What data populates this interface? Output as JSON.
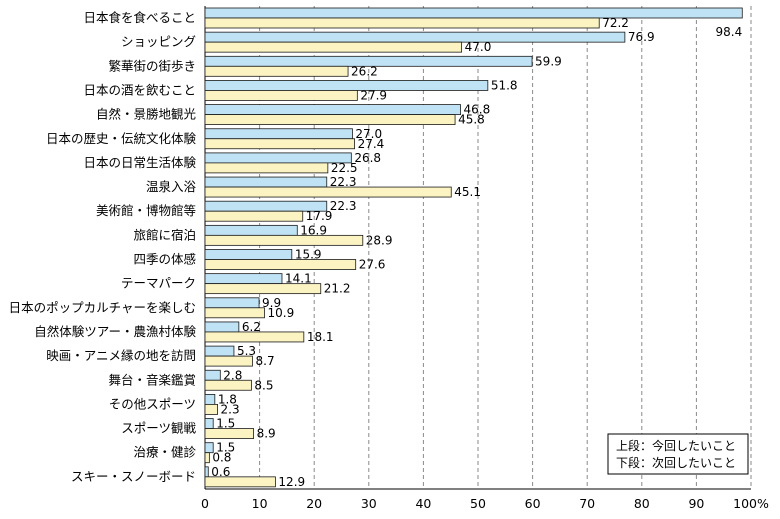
{
  "chart_data": {
    "type": "bar",
    "orientation": "horizontal",
    "categories": [
      "日本食を食べること",
      "ショッピング",
      "繁華街の街歩き",
      "日本の酒を飲むこと",
      "自然・景勝地観光",
      "日本の歴史・伝統文化体験",
      "日本の日常生活体験",
      "温泉入浴",
      "美術館・博物館等",
      "旅館に宿泊",
      "四季の体感",
      "テーマパーク",
      "日本のポップカルチャーを楽しむ",
      "自然体験ツアー・農漁村体験",
      "映画・アニメ縁の地を訪問",
      "舞台・音楽鑑賞",
      "その他スポーツ",
      "スポーツ観戦",
      "治療・健診",
      "スキー・スノーボード"
    ],
    "series": [
      {
        "name": "上段：今回したいこと",
        "color": "#bfe3f5",
        "values": [
          98.4,
          76.9,
          59.9,
          51.8,
          46.8,
          27.0,
          26.8,
          22.3,
          22.3,
          16.9,
          15.9,
          14.1,
          9.9,
          6.2,
          5.3,
          2.8,
          1.8,
          1.5,
          1.5,
          0.6
        ]
      },
      {
        "name": "下段：次回したいこと",
        "color": "#fbf3c2",
        "values": [
          72.2,
          47.0,
          26.2,
          27.9,
          45.8,
          27.4,
          22.5,
          45.1,
          17.9,
          28.9,
          27.6,
          21.2,
          10.9,
          18.1,
          8.7,
          8.5,
          2.3,
          8.9,
          0.8,
          12.9
        ]
      }
    ],
    "value_labels": [
      [
        "98.4",
        "72.2"
      ],
      [
        "76.9",
        "47.0"
      ],
      [
        "59.9",
        "26.2"
      ],
      [
        "51.8",
        "27.9"
      ],
      [
        "46.8",
        "45.8"
      ],
      [
        "27.0",
        "27.4"
      ],
      [
        "26.8",
        "22.5"
      ],
      [
        "22.3",
        "45.1"
      ],
      [
        "22.3",
        "17.9"
      ],
      [
        "16.9",
        "28.9"
      ],
      [
        "15.9",
        "27.6"
      ],
      [
        "14.1",
        "21.2"
      ],
      [
        "9.9",
        "10.9"
      ],
      [
        "6.2",
        "18.1"
      ],
      [
        "5.3",
        "8.7"
      ],
      [
        "2.8",
        "8.5"
      ],
      [
        "1.8",
        "2.3"
      ],
      [
        "1.5",
        "8.9"
      ],
      [
        "1.5",
        "0.8"
      ],
      [
        "0.6",
        "12.9"
      ]
    ],
    "xlim": [
      0,
      100
    ],
    "xticks": [
      "0",
      "10",
      "20",
      "30",
      "40",
      "50",
      "60",
      "70",
      "80",
      "90",
      "100%"
    ],
    "grid": true,
    "legend_position": "bottom-right",
    "legend": [
      "上段：今回したいこと",
      "下段：次回したいこと"
    ]
  }
}
